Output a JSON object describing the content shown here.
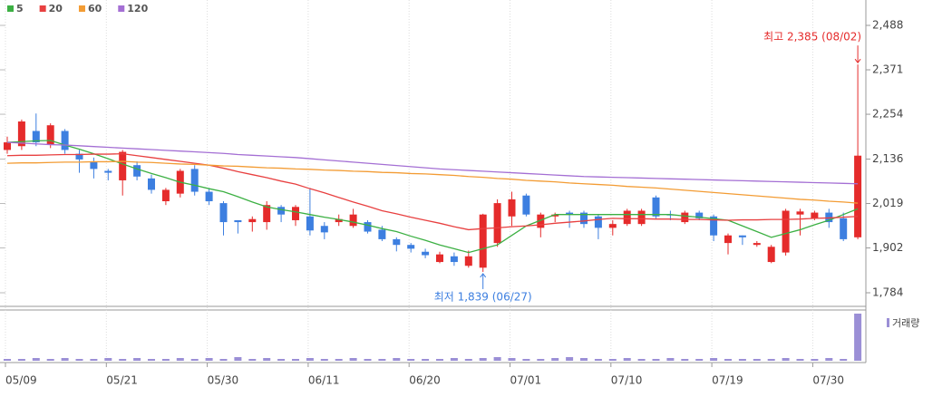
{
  "chart_data": {
    "type": "candlestick",
    "legend": [
      {
        "name": "5",
        "color": "#3cb043"
      },
      {
        "name": "20",
        "color": "#e84040"
      },
      {
        "name": "60",
        "color": "#f39c34"
      },
      {
        "name": "120",
        "color": "#a46fd4"
      }
    ],
    "categories": [
      "05/09",
      null,
      null,
      null,
      null,
      null,
      null,
      "05/21",
      null,
      null,
      null,
      null,
      null,
      null,
      "05/30",
      null,
      null,
      null,
      null,
      null,
      null,
      "06/11",
      null,
      null,
      null,
      null,
      null,
      null,
      "06/20",
      null,
      null,
      null,
      null,
      null,
      null,
      "07/01",
      null,
      null,
      null,
      null,
      null,
      null,
      "07/10",
      null,
      null,
      null,
      null,
      null,
      null,
      "07/19",
      null,
      null,
      null,
      null,
      null,
      null,
      "07/30",
      null,
      null,
      null
    ],
    "open": [
      2160,
      2170,
      2210,
      2175,
      2210,
      2150,
      2130,
      2105,
      2080,
      2120,
      2085,
      2025,
      2045,
      2110,
      2050,
      2020,
      1975,
      1970,
      1970,
      2010,
      1975,
      1985,
      1960,
      1970,
      1960,
      1970,
      1950,
      1925,
      1910,
      1892,
      1865,
      1880,
      1855,
      1850,
      1915,
      1985,
      2040,
      1955,
      1985,
      1995,
      1995,
      1985,
      1955,
      1965,
      1965,
      2035,
      1990,
      1970,
      1995,
      1985,
      1915,
      1935,
      1910,
      1865,
      1890,
      1990,
      1980,
      1995,
      1980,
      1930
    ],
    "high": [
      2195,
      2240,
      2256,
      2230,
      2215,
      2160,
      2140,
      2110,
      2160,
      2130,
      2095,
      2060,
      2110,
      2120,
      2060,
      2025,
      1975,
      1985,
      2025,
      2015,
      2015,
      2060,
      1970,
      1990,
      2005,
      1975,
      1960,
      1930,
      1915,
      1900,
      1892,
      1890,
      1895,
      1992,
      2030,
      2050,
      2045,
      1995,
      1995,
      2000,
      2000,
      1990,
      1975,
      2005,
      2005,
      2040,
      2000,
      2000,
      2000,
      1990,
      1940,
      1935,
      1920,
      1910,
      2005,
      2005,
      2000,
      2005,
      1995,
      2385
    ],
    "low": [
      2150,
      2160,
      2170,
      2165,
      2150,
      2100,
      2085,
      2080,
      2040,
      2080,
      2045,
      2015,
      2035,
      2040,
      2015,
      1935,
      1940,
      1945,
      1950,
      1970,
      1960,
      1935,
      1925,
      1960,
      1955,
      1940,
      1920,
      1893,
      1890,
      1875,
      1862,
      1855,
      1850,
      1839,
      1905,
      1960,
      1985,
      1930,
      1970,
      1955,
      1955,
      1925,
      1935,
      1960,
      1960,
      1980,
      1975,
      1965,
      1975,
      1920,
      1885,
      1910,
      1905,
      1862,
      1882,
      1935,
      1975,
      1955,
      1920,
      1925
    ],
    "close": [
      2180,
      2235,
      2180,
      2225,
      2160,
      2135,
      2110,
      2100,
      2155,
      2090,
      2055,
      2055,
      2105,
      2050,
      2025,
      1970,
      1970,
      1978,
      2015,
      1990,
      2010,
      1948,
      1943,
      1978,
      1990,
      1945,
      1925,
      1910,
      1900,
      1883,
      1885,
      1865,
      1880,
      1990,
      2020,
      2030,
      1990,
      1990,
      1990,
      1990,
      1965,
      1955,
      1965,
      2000,
      2000,
      1985,
      1988,
      1995,
      1980,
      1935,
      1935,
      1930,
      1915,
      1905,
      2000,
      1998,
      1995,
      1970,
      1925,
      2145
    ],
    "up_color": "#e52b2b",
    "down_color": "#3d7fe0",
    "series": [
      {
        "name": "5",
        "color": "#3cb043",
        "values": [
          2180,
          2182,
          2184,
          2185,
          2173,
          2162,
          2150,
          2137,
          2123,
          2110,
          2098,
          2087,
          2075,
          2067,
          2058,
          2050,
          2037,
          2023,
          2010,
          2003,
          1997,
          1990,
          1983,
          1977,
          1970,
          1962,
          1953,
          1945,
          1933,
          1922,
          1910,
          1900,
          1890,
          1900,
          1910,
          1935,
          1960,
          1975,
          1990,
          1990,
          1990,
          1990,
          1990,
          1990,
          1990,
          1990,
          1990,
          1986,
          1983,
          1979,
          1975,
          1960,
          1945,
          1930,
          1940,
          1950,
          1963,
          1975,
          1990,
          2005
        ]
      },
      {
        "name": "20",
        "color": "#e84040",
        "values": [
          2145,
          2146,
          2146,
          2147,
          2148,
          2148,
          2149,
          2149,
          2150,
          2145,
          2140,
          2135,
          2130,
          2125,
          2120,
          2112,
          2103,
          2095,
          2087,
          2078,
          2070,
          2058,
          2047,
          2035,
          2023,
          2012,
          2000,
          1992,
          1983,
          1975,
          1967,
          1958,
          1950,
          1953,
          1955,
          1958,
          1960,
          1963,
          1967,
          1970,
          1973,
          1977,
          1980,
          1979,
          1979,
          1978,
          1978,
          1977,
          1977,
          1976,
          1975,
          1976,
          1976,
          1977,
          1977,
          1978,
          1980,
          1981,
          1983,
          1985
        ]
      },
      {
        "name": "60",
        "color": "#f39c34",
        "values": [
          2125,
          2126,
          2126,
          2127,
          2128,
          2128,
          2129,
          2129,
          2130,
          2128,
          2127,
          2125,
          2123,
          2122,
          2120,
          2118,
          2117,
          2115,
          2113,
          2112,
          2110,
          2109,
          2107,
          2106,
          2104,
          2103,
          2101,
          2100,
          2098,
          2097,
          2095,
          2093,
          2090,
          2088,
          2085,
          2083,
          2080,
          2078,
          2076,
          2073,
          2071,
          2069,
          2067,
          2064,
          2062,
          2060,
          2057,
          2054,
          2051,
          2048,
          2045,
          2042,
          2039,
          2036,
          2033,
          2030,
          2028,
          2025,
          2023,
          2020
        ]
      },
      {
        "name": "120",
        "color": "#a46fd4",
        "values": [
          2180,
          2178,
          2176,
          2174,
          2173,
          2171,
          2169,
          2167,
          2165,
          2163,
          2161,
          2159,
          2157,
          2155,
          2153,
          2151,
          2148,
          2146,
          2144,
          2142,
          2140,
          2137,
          2134,
          2131,
          2128,
          2125,
          2122,
          2119,
          2116,
          2113,
          2110,
          2108,
          2106,
          2104,
          2102,
          2100,
          2098,
          2096,
          2094,
          2092,
          2090,
          2089,
          2088,
          2087,
          2086,
          2085,
          2084,
          2083,
          2082,
          2081,
          2080,
          2079,
          2078,
          2077,
          2076,
          2075,
          2074,
          2073,
          2072,
          2071
        ]
      }
    ],
    "volume_label": "거래량",
    "volume_color": "#9b8fd6",
    "volume": [
      2,
      2,
      3,
      2,
      3,
      2,
      2,
      3,
      2,
      3,
      2,
      2,
      3,
      2,
      3,
      2,
      4,
      2,
      3,
      2,
      2,
      3,
      2,
      2,
      3,
      2,
      2,
      3,
      2,
      2,
      2,
      3,
      2,
      3,
      4,
      3,
      2,
      2,
      3,
      4,
      3,
      2,
      2,
      3,
      2,
      2,
      3,
      2,
      2,
      3,
      2,
      2,
      2,
      2,
      3,
      2,
      2,
      3,
      2,
      52
    ],
    "ylim": [
      1784,
      2488
    ],
    "yticks": [
      {
        "value": 2488,
        "label": "2,488"
      },
      {
        "value": 2371,
        "label": "2,371"
      },
      {
        "value": 2254,
        "label": "2,254"
      },
      {
        "value": 2136,
        "label": "2,136"
      },
      {
        "value": 2019,
        "label": "2,019"
      },
      {
        "value": 1902,
        "label": "1,902"
      },
      {
        "value": 1784,
        "label": "1,784"
      }
    ],
    "annotations": [
      {
        "text": "최고 2,385 (08/02)",
        "index": 59,
        "value": 2385,
        "color": "#e52b2b"
      },
      {
        "text": "최저 1,839 (06/27)",
        "index": 33,
        "value": 1839,
        "color": "#3d7fe0"
      }
    ]
  }
}
